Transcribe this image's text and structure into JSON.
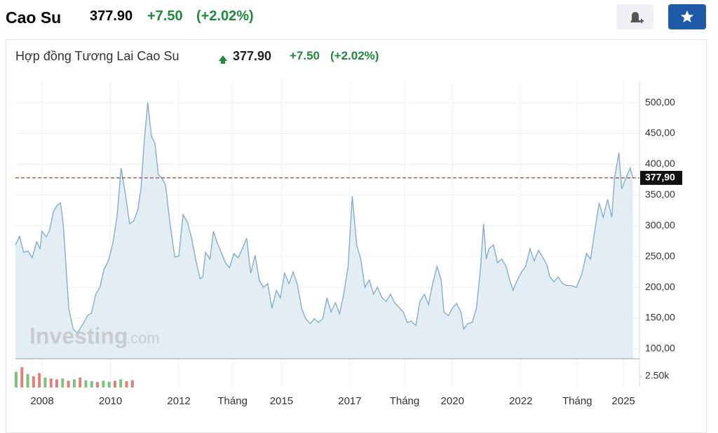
{
  "header": {
    "title": "Cao Su",
    "price": "377.90",
    "change": "+7.50",
    "change_pct": "(+2.02%)"
  },
  "chart_header": {
    "title": "Hợp đồng Tương Lai Cao Su",
    "price": "377.90",
    "change": "+7.50",
    "change_pct": "(+2.02%)"
  },
  "watermark": {
    "brand": "Investing",
    "suffix": ".com"
  },
  "chart_data": [
    {
      "type": "area",
      "color": "#7fa9c9",
      "fill": "#e3edf4",
      "grid": true,
      "x": [
        2007.22,
        2007.34,
        2007.46,
        2007.59,
        2007.71,
        2007.84,
        2007.94,
        2008.0,
        2008.12,
        2008.21,
        2008.33,
        2008.45,
        2008.54,
        2008.62,
        2008.78,
        2008.91,
        2009.03,
        2009.2,
        2009.34,
        2009.44,
        2009.57,
        2009.69,
        2009.81,
        2009.94,
        2010.06,
        2010.19,
        2010.31,
        2010.43,
        2010.56,
        2010.68,
        2010.8,
        2010.89,
        2010.99,
        2011.09,
        2011.2,
        2011.3,
        2011.4,
        2011.51,
        2011.61,
        2011.75,
        2011.88,
        2012.0,
        2012.12,
        2012.25,
        2012.37,
        2012.49,
        2012.62,
        2012.7,
        2012.78,
        2012.91,
        2013.01,
        2013.11,
        2013.24,
        2013.36,
        2013.48,
        2013.61,
        2013.73,
        2013.86,
        2013.98,
        2014.1,
        2014.23,
        2014.35,
        2014.47,
        2014.6,
        2014.72,
        2014.85,
        2014.97,
        2015.09,
        2015.22,
        2015.34,
        2015.46,
        2015.59,
        2015.71,
        2015.84,
        2015.96,
        2016.08,
        2016.21,
        2016.33,
        2016.45,
        2016.58,
        2016.7,
        2016.82,
        2016.95,
        2017.07,
        2017.2,
        2017.32,
        2017.44,
        2017.57,
        2017.69,
        2017.81,
        2017.94,
        2018.06,
        2018.19,
        2018.31,
        2018.43,
        2018.56,
        2018.68,
        2018.8,
        2018.93,
        2019.05,
        2019.18,
        2019.3,
        2019.42,
        2019.55,
        2019.67,
        2019.75,
        2019.88,
        2020.0,
        2020.12,
        2020.25,
        2020.33,
        2020.45,
        2020.58,
        2020.7,
        2020.82,
        2020.91,
        2020.99,
        2021.07,
        2021.2,
        2021.32,
        2021.44,
        2021.57,
        2021.65,
        2021.77,
        2021.9,
        2022.02,
        2022.14,
        2022.27,
        2022.39,
        2022.52,
        2022.64,
        2022.76,
        2022.85,
        2022.97,
        2023.09,
        2023.22,
        2023.34,
        2023.46,
        2023.63,
        2023.79,
        2023.92,
        2024.04,
        2024.16,
        2024.29,
        2024.41,
        2024.54,
        2024.66,
        2024.74,
        2024.87,
        2024.95,
        2025.07,
        2025.2,
        2025.28
      ],
      "values": [
        269,
        283,
        257,
        259,
        248,
        274,
        263,
        291,
        282,
        291,
        323,
        334,
        337,
        301,
        166,
        132,
        126,
        141,
        155,
        158,
        189,
        200,
        229,
        243,
        269,
        314,
        394,
        354,
        303,
        308,
        326,
        360,
        440,
        500,
        445,
        434,
        383,
        377,
        366,
        300,
        249,
        251,
        318,
        306,
        280,
        246,
        214,
        217,
        257,
        246,
        291,
        274,
        257,
        240,
        232,
        255,
        248,
        263,
        280,
        223,
        252,
        212,
        200,
        206,
        166,
        195,
        183,
        223,
        206,
        225,
        206,
        166,
        149,
        141,
        149,
        143,
        149,
        183,
        160,
        175,
        157,
        189,
        234,
        348,
        269,
        246,
        200,
        212,
        189,
        200,
        183,
        177,
        189,
        175,
        168,
        160,
        143,
        145,
        138,
        177,
        189,
        172,
        206,
        234,
        212,
        160,
        154,
        166,
        174,
        160,
        132,
        141,
        143,
        166,
        229,
        303,
        246,
        263,
        269,
        240,
        246,
        234,
        217,
        195,
        212,
        225,
        234,
        263,
        243,
        260,
        249,
        237,
        217,
        209,
        217,
        206,
        203,
        203,
        200,
        223,
        255,
        246,
        291,
        337,
        314,
        343,
        314,
        377,
        419,
        360,
        377,
        394,
        377.9
      ],
      "xlim": [
        2007.22,
        2025.47
      ],
      "xticks": [
        2008,
        2010,
        2012,
        {
          "value": 2013.57,
          "label": "Tháng"
        },
        2015,
        2017,
        {
          "value": 2018.6,
          "label": "Tháng"
        },
        2020,
        2022,
        {
          "value": 2023.65,
          "label": "Tháng"
        },
        2025
      ],
      "ylim": [
        84,
        536
      ],
      "yticks": [
        {
          "value": 100,
          "label": "100,00"
        },
        {
          "value": 150,
          "label": "150,00"
        },
        {
          "value": 200,
          "label": "200,00"
        },
        {
          "value": 250,
          "label": "250,00"
        },
        {
          "value": 300,
          "label": "300,00"
        },
        {
          "value": 350,
          "label": "350,00"
        },
        {
          "value": 400,
          "label": "400,00"
        },
        {
          "value": 450,
          "label": "450,00"
        },
        {
          "value": 500,
          "label": "500,00"
        }
      ],
      "last_price": {
        "value": 377.9,
        "label": "377,90"
      }
    },
    {
      "type": "bar",
      "x": [
        2007.24,
        2007.41,
        2007.58,
        2007.75,
        2007.92,
        2008.09,
        2008.26,
        2008.43,
        2008.6,
        2008.77,
        2008.94,
        2009.11,
        2009.28,
        2009.45,
        2009.62,
        2009.79,
        2009.96,
        2010.13,
        2010.3,
        2010.47,
        2010.64
      ],
      "values": [
        3500,
        4500,
        3000,
        2500,
        3200,
        2200,
        2000,
        1800,
        2000,
        1500,
        1800,
        2200,
        1600,
        1400,
        1200,
        1500,
        1300,
        1500,
        1800,
        1400,
        1600
      ],
      "colors": [
        "#4caf50",
        "#d9534f",
        "#4caf50",
        "#d9534f",
        "#d9534f",
        "#4caf50",
        "#d9534f",
        "#d9534f",
        "#4caf50",
        "#d9534f",
        "#4caf50",
        "#d9534f",
        "#4caf50",
        "#4caf50",
        "#d9534f",
        "#4caf50",
        "#4caf50",
        "#d9534f",
        "#4caf50",
        "#d9534f",
        "#d9534f"
      ],
      "ylim": [
        0,
        5150
      ],
      "yticks": [
        {
          "value": 2500,
          "label": "2.50k"
        }
      ]
    }
  ]
}
